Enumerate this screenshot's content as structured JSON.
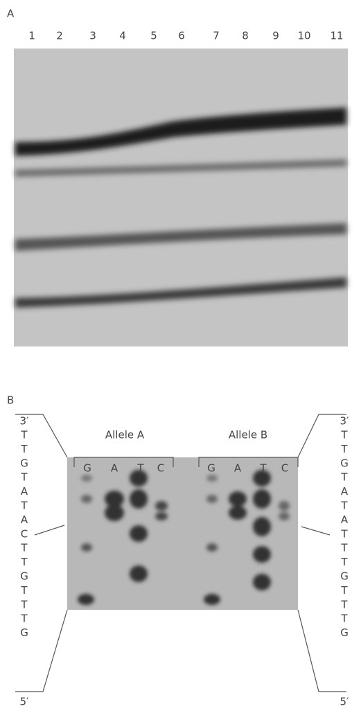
{
  "panel_a": {
    "label": "A",
    "lanes": [
      "1",
      "2",
      "3",
      "4",
      "5",
      "6",
      "7",
      "8",
      "9",
      "10",
      "11"
    ]
  },
  "panel_b": {
    "label": "B",
    "left": {
      "top": "3′",
      "sequence": [
        "T",
        "T",
        "G",
        "T",
        "A",
        "T",
        "A",
        "C",
        "T",
        "T",
        "G",
        "T",
        "T",
        "T",
        "G"
      ],
      "bottom": "5′"
    },
    "right": {
      "top": "3′",
      "sequence": [
        "T",
        "T",
        "G",
        "T",
        "A",
        "T",
        "A",
        "T",
        "T",
        "T",
        "G",
        "T",
        "T",
        "T",
        "G"
      ],
      "bottom": "5′"
    },
    "alleles": [
      {
        "name": "Allele A",
        "lanes": [
          "G",
          "A",
          "T",
          "C"
        ]
      },
      {
        "name": "Allele B",
        "lanes": [
          "G",
          "A",
          "T",
          "C"
        ]
      }
    ]
  }
}
